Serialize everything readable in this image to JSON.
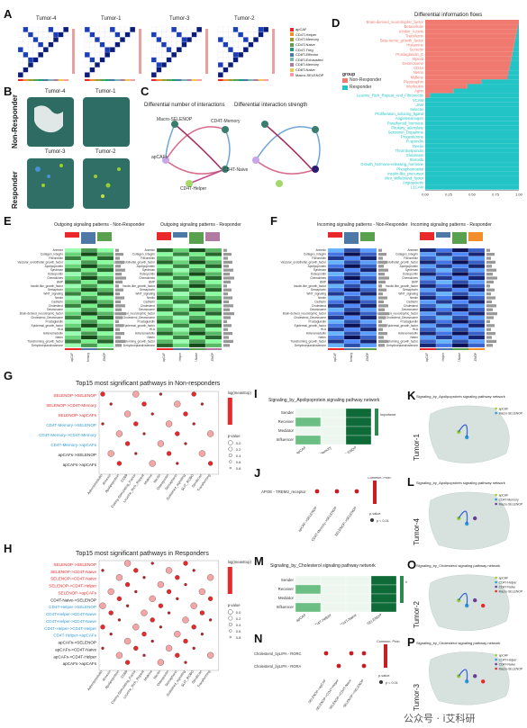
{
  "panels": {
    "A": {
      "label": "A",
      "titles": [
        "Tumor-4",
        "Tumor-1",
        "Tumor-3",
        "Tumor-2"
      ],
      "legend": [
        "apCAF",
        "CD4T-Helper",
        "CD4T-Memory",
        "CD4T-Naive",
        "CD4T-Treg",
        "CD8T-Effector",
        "CD8T-Exhausted",
        "CD8T-Memory",
        "CD8T-Naive",
        "Macro-SELENOP"
      ]
    },
    "B": {
      "label": "B",
      "titles": [
        "Tumor-4",
        "Tumor-1",
        "Tumor-3",
        "Tumor-2"
      ],
      "row_labels": [
        "Non-Responder",
        "Responder"
      ]
    },
    "C": {
      "label": "C",
      "titles": [
        "Differential number of interactions",
        "Differential interaction strength"
      ],
      "nodes": [
        "Macro-SELENOP",
        "CD4T-Memory",
        "apCAFs",
        "CD4T-Naive",
        "CD4T-Helper"
      ]
    },
    "D": {
      "label": "D",
      "title": "Differential information flows",
      "pathways": [
        "Brain-derived_neurotrophic_factor",
        "Betacellulin",
        "Inhibin_Activin",
        "Transferrin",
        "Beta-nerve_growth_factor",
        "Histamine",
        "Secretin",
        "Prostaglandin_E",
        "Opioid",
        "Desmosome",
        "CD44",
        "Netrin",
        "Midkine",
        "Pleiotrophin",
        "Interleukin",
        "Agrin",
        "Leucine_Rich_Repeat_And_Fibronectin",
        "VCAM",
        "JAM",
        "Selectin",
        "Proliferation_inducing_ligand",
        "Angiotensinogen",
        "Parathyroid_hormone",
        "Pituitary_adenylate",
        "Serotonin_Dopamine",
        "Progesterone",
        "R-spondin",
        "Reelin",
        "Thrombospondin",
        "Glutamate",
        "Steroids",
        "Growth_hormone-releasing_hormone",
        "Phosphoinositol",
        "Insulin-like_precursor",
        "Vitro_Willebrand_factor",
        "Angiopoietin",
        "L1CAM"
      ],
      "legend_title": "group",
      "legend": [
        "Non-Responder",
        "Responder"
      ],
      "axis_ticks": [
        "0.00",
        "0.25",
        "0.50",
        "0.75",
        "1.00"
      ]
    },
    "E": {
      "label": "E",
      "titles": [
        "Outgoing signaling patterns - Non-Responder",
        "Outgoing signaling patterns - Responder"
      ],
      "rows": [
        "Annexin",
        "Collagen_Integrin",
        "Fibronectin",
        "Vascular_endothelial_growth_factor",
        "Apolipoprotein",
        "Syndecan",
        "Osteopontin",
        "Chemokines",
        "BMP",
        "Insulin-like_growth_factor",
        "Semaphorin",
        "WNT_signaling",
        "Nectin",
        "Cadherin",
        "Cholesterol",
        "Desmosome",
        "Brain-derived_neurotrophic_factor",
        "Cholesterol_Desmosome",
        "Prostaglandin",
        "Epidermal_growth_factor",
        "HLA",
        "Adrenomedullin",
        "Netrin",
        "Transforming_growth_factor",
        "Dehydroepiandrosterone"
      ],
      "cols_left": [
        "apCAF",
        "CD4T-Memory",
        "Macro-SELENOP"
      ],
      "cols_right": [
        "apCAF",
        "CD4T-Helper",
        "CD4T-Naive",
        "Macro-SELENOP"
      ],
      "legend": "Relative strength",
      "ticks_left": [
        "3000",
        "1500",
        "500"
      ],
      "ticks_right": [
        "2000",
        "1000"
      ]
    },
    "F": {
      "label": "F",
      "titles": [
        "Incoming signaling patterns - Non-Responder",
        "Incoming signaling patterns - Responder"
      ],
      "legend": "Relative strength"
    },
    "G": {
      "label": "G",
      "title": "Top15 most significant pathways in Non-responders",
      "rows": [
        "SELENOP->SELENOP",
        "SELENOP->CD4T-Memory",
        "SELENOP->apCAFs",
        "CD4T-Memory->SELENOP",
        "CD4T-Memory->CD4T-Memory",
        "CD4T-Memory->apCAFs",
        "apCAFs->SELENOP",
        "apCAFs->apCAFs"
      ],
      "row_colors": [
        "#e8282a",
        "#e8282a",
        "#e8282a",
        "#2f9bd6",
        "#2f9bd6",
        "#2f9bd6",
        "#222222",
        "#222222"
      ],
      "cols": [
        "Adrenomedullin",
        "Annexin",
        "Apolipoprotein",
        "CD99",
        "Colony-Stimulating_Factor",
        "Leucine_Rich_Repeat",
        "Midkine",
        "Nectin",
        "Osteopontin",
        "Semaphorin",
        "Sustained_signaling",
        "SLIT_ROBO",
        "Syndecan",
        "Transforming"
      ],
      "legend_color": "log(meanExp)",
      "legend_p": "p-value",
      "p_vals": [
        "0.0",
        "0.2",
        "0.4",
        "0.6",
        "0.8"
      ]
    },
    "H": {
      "label": "H",
      "title": "Top15 most significant pathways in Responders",
      "rows": [
        "SELENOP->SELENOP",
        "SELENOP->CD4T-Naive",
        "SELENOP->CD4T-Naive",
        "SELENOP->CD4T-Helper",
        "SELENOP->apCAFs",
        "CD4T-Naive->SELENOP",
        "CD4T-Helper->SELENOP",
        "CD4T-Helper->CD4T-Naive",
        "CD4T-Helper->CD4T-Naive",
        "CD4T-Helper->CD4T-Helper",
        "CD4T-Helper->apCAFs",
        "apCAFs->SELENOP",
        "apCAFs->CD4T-Naive",
        "apCAFs->CD4T-Helper",
        "apCAFs->apCAFs"
      ],
      "row_colors": [
        "#e8282a",
        "#e8282a",
        "#e8282a",
        "#e8282a",
        "#e8282a",
        "#222222",
        "#2f9bd6",
        "#2f9bd6",
        "#2f9bd6",
        "#2f9bd6",
        "#2f9bd6",
        "#222222",
        "#222222",
        "#222222",
        "#222222"
      ],
      "legend_color": "log(meanExp)",
      "legend_p": "p-value",
      "p_vals": [
        "0.0",
        "0.2",
        "0.4",
        "0.6",
        "0.8"
      ]
    },
    "I": {
      "label": "I",
      "title": "Signaling_by_Apolipoprotein signaling pathway network",
      "rows": [
        "Sender",
        "Receiver",
        "Mediator",
        "Influencer"
      ],
      "cols": [
        "apCAF",
        "CD4T-Memory",
        "Macro-SELENOP"
      ],
      "legend": "Importance"
    },
    "J": {
      "label": "J",
      "row": "APOE - TREM2_receptor",
      "cols": [
        "apCAF->SELENOP",
        "CD4T-Memory->SELENOP",
        "SELENOP->SELENOP"
      ],
      "legend_title": "Commun. Prob.",
      "legend_p": "p-value",
      "p_val": "p < 0.01"
    },
    "K": {
      "label": "K",
      "title": "Signaling_by_Apolipoprotein signaling pathway network",
      "side": "Tumor-1",
      "legend": [
        "apCAF",
        "Macro-SELENOP"
      ]
    },
    "L": {
      "label": "L",
      "title": "Signaling_by_Apolipoprotein signaling pathway network",
      "side": "Tumor-4",
      "legend": [
        "apCAF",
        "CD4T-Memory",
        "Macro-SELENOP"
      ]
    },
    "M": {
      "label": "M",
      "title": "Signaling_by_Cholesterol signaling pathway network",
      "rows": [
        "Sender",
        "Receiver",
        "Mediator",
        "Influencer"
      ],
      "cols": [
        "apCAF",
        "CD4T-Helper",
        "CD4T-Naive",
        "Macro-SELENOP"
      ],
      "legend": "Importance"
    },
    "N": {
      "label": "N",
      "rows": [
        "Cholesterol_byLIPA - RORC",
        "Cholesterol_byLIPA - RORA"
      ],
      "cols": [
        "SELENOP->apCAF",
        "SELENOP->CD4T-Helper",
        "SELENOP->CD4T-Naive",
        "SELENOP->SELENOP"
      ],
      "legend_title": "Commun. Prob.",
      "legend_p": "p-value",
      "p_val": "p < 0.01"
    },
    "O": {
      "label": "O",
      "title": "Signaling_by_Cholesterol signaling pathway network",
      "side": "Tumor-2",
      "legend": [
        "apCAF",
        "CD4T-Helper",
        "CD4T-Naive",
        "Macro-SELENOP"
      ]
    },
    "P": {
      "label": "P",
      "title": "Signaling_by_Cholesterol signaling pathway network",
      "side": "Tumor-3",
      "legend": [
        "apCAF",
        "CD4T-Helper",
        "CD4T-Naive",
        "Macro-SELENOP"
      ]
    }
  },
  "watermark": "公众号 · i艾科研",
  "colors": {
    "nonresp": "#f07a70",
    "resp": "#23c4c6",
    "red": "#e8282a",
    "blue": "#2f9bd6",
    "navy": "#0b1d7a",
    "teal": "#2d6b63"
  }
}
